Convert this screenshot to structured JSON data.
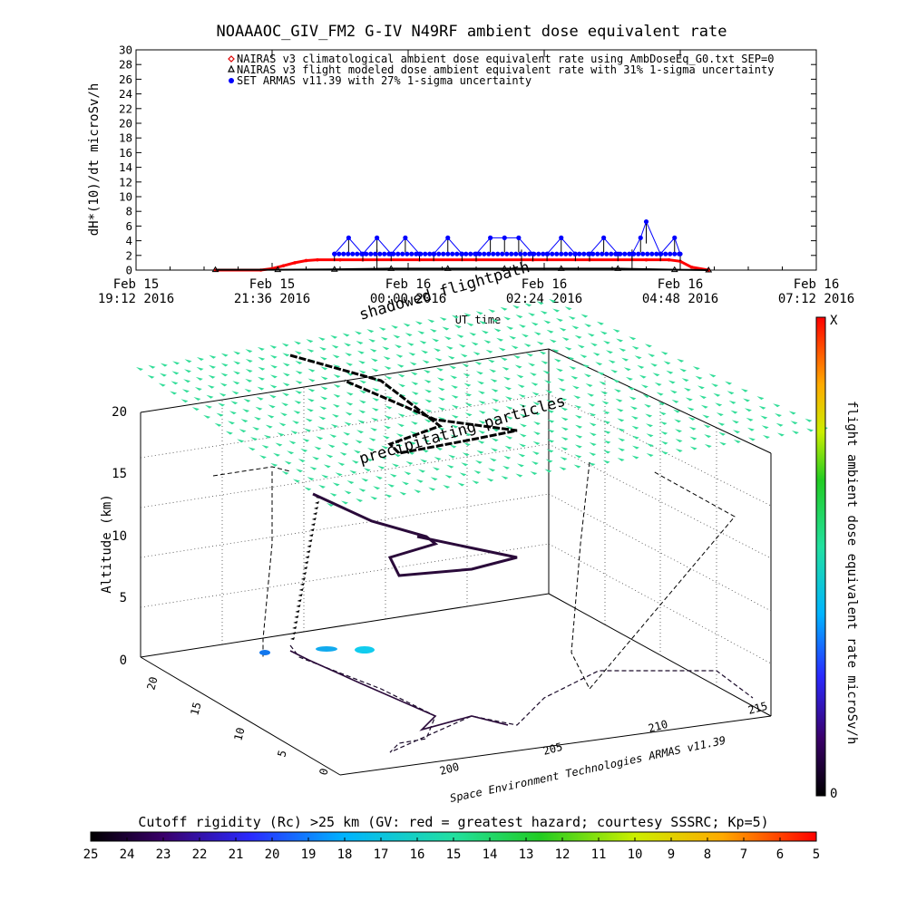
{
  "page": {
    "title": "NOAAAOC_GIV_FM2 G-IV    N49RF  ambient dose equivalent rate"
  },
  "chart_data": [
    {
      "type": "scatter",
      "title": "NOAAAOC_GIV_FM2 G-IV    N49RF  ambient dose equivalent rate",
      "ylabel": "dH*(10)/dt microSv/h",
      "xlabel": "UT time",
      "ylim": [
        0,
        30
      ],
      "yticks": [
        0,
        2,
        4,
        6,
        8,
        10,
        12,
        14,
        16,
        18,
        20,
        22,
        24,
        26,
        28,
        30
      ],
      "xticks": [
        {
          "top": "Feb 15",
          "bottom": "19:12 2016"
        },
        {
          "top": "Feb 15",
          "bottom": "21:36 2016"
        },
        {
          "top": "Feb 16",
          "bottom": "00:00 2016"
        },
        {
          "top": "Feb 16",
          "bottom": "02:24 2016"
        },
        {
          "top": "Feb 16",
          "bottom": "04:48 2016"
        },
        {
          "top": "Feb 16",
          "bottom": "07:12 2016"
        }
      ],
      "x_units": "hours from Feb 15 19:12 UT",
      "xlim": [
        0,
        12
      ],
      "legend": [
        {
          "label": "NAIRAS v3 climatological ambient dose equivalent rate using AmbDoseEq_G0.txt SEP=0",
          "color": "#dd0000",
          "marker": "diamond"
        },
        {
          "label": "NAIRAS v3 flight modeled dose ambient equivalent rate with 31% 1-sigma uncertainty",
          "color": "#000000",
          "marker": "triangle"
        },
        {
          "label": "SET ARMAS v11.39 with 27% 1-sigma uncertainty",
          "color": "#0000ff",
          "marker": "circle"
        }
      ],
      "legend_position": "top-center",
      "series": [
        {
          "name": "NAIRAS v3 climatological ambient dose equivalent rate using AmbDoseEq_G0.txt SEP=0",
          "color": "#ff0000",
          "x": [
            1.4,
            2.2,
            2.4,
            2.6,
            2.8,
            3.0,
            3.2,
            3.6,
            4.0,
            5.0,
            6.0,
            7.0,
            8.0,
            9.0,
            9.4,
            9.6,
            9.8,
            10.1
          ],
          "y": [
            0.0,
            0.0,
            0.2,
            0.6,
            1.0,
            1.3,
            1.4,
            1.4,
            1.4,
            1.4,
            1.4,
            1.4,
            1.4,
            1.4,
            1.4,
            1.2,
            0.4,
            0.0
          ]
        },
        {
          "name": "NAIRAS v3 flight modeled dose ambient equivalent rate with 31% 1-sigma uncertainty",
          "color": "#000000",
          "x": [
            1.4,
            2.5,
            3.5,
            4.5,
            5.5,
            6.5,
            7.5,
            8.5,
            9.5,
            10.1
          ],
          "y": [
            0.05,
            0.05,
            0.1,
            0.2,
            0.2,
            0.2,
            0.2,
            0.2,
            0.05,
            0.0
          ]
        },
        {
          "name": "SET ARMAS v11.39 with 27% 1-sigma uncertainty",
          "color": "#0000ff",
          "x": [
            3.5,
            3.75,
            4.0,
            4.25,
            4.5,
            4.75,
            5.0,
            5.25,
            5.5,
            5.75,
            6.0,
            6.25,
            6.5,
            6.75,
            7.0,
            7.25,
            7.5,
            7.75,
            8.0,
            8.25,
            8.5,
            8.75,
            8.9,
            9.0,
            9.25,
            9.5,
            9.6
          ],
          "y": [
            2.2,
            4.4,
            2.2,
            4.4,
            2.2,
            4.4,
            2.2,
            2.2,
            4.4,
            2.2,
            2.2,
            4.4,
            4.4,
            4.4,
            2.2,
            2.2,
            4.4,
            2.2,
            2.2,
            4.4,
            2.2,
            2.2,
            4.4,
            6.6,
            2.2,
            4.4,
            2.2
          ]
        }
      ]
    },
    {
      "type": "scatter",
      "subtype": "3d-flight-path",
      "zlabel": "Altitude (km)",
      "zticks": [
        "0",
        "5",
        "10",
        "15",
        "20"
      ],
      "latitude_ticks": [
        "0",
        "5",
        "10",
        "15",
        "20"
      ],
      "longitude_ticks": [
        "200",
        "205",
        "210",
        "215"
      ],
      "annotations": [
        "shadowed flightpath",
        "precipitating particles",
        "Space Environment Technologies ARMAS v11.39"
      ],
      "colorbar": {
        "label": "flight ambient dose equivalent rate microSv/h",
        "top_label": "X",
        "bottom_label": "0"
      }
    }
  ],
  "footer": {
    "colorbar_title": "Cutoff rigidity (Rc) >25 km (GV: red = greatest hazard; courtesy SSSRC; Kp=5)",
    "colorbar_ticks": [
      "25",
      "24",
      "23",
      "22",
      "21",
      "20",
      "19",
      "18",
      "17",
      "16",
      "15",
      "14",
      "13",
      "12",
      "11",
      "10",
      "9",
      "8",
      "7",
      "6",
      "5"
    ]
  },
  "colors": {
    "surface_markers": "#33dd99",
    "flight_path": "#2a0a3a"
  }
}
